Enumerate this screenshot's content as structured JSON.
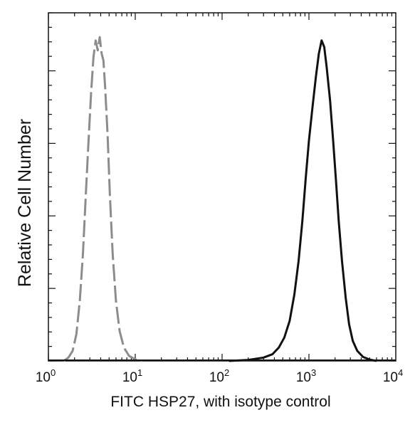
{
  "chart_data": {
    "type": "line",
    "title": "",
    "xlabel": "FITC  HSP27,  with isotype control",
    "ylabel": "Relative Cell Number",
    "x_scale": "log",
    "xlim": [
      1,
      10000
    ],
    "ylim": [
      0,
      100
    ],
    "x_ticks": [
      {
        "base": "10",
        "exp": "0",
        "value": 1
      },
      {
        "base": "10",
        "exp": "1",
        "value": 10
      },
      {
        "base": "10",
        "exp": "2",
        "value": 100
      },
      {
        "base": "10",
        "exp": "3",
        "value": 1000
      },
      {
        "base": "10",
        "exp": "4",
        "value": 10000
      }
    ],
    "grid": false,
    "legend": "none",
    "series": [
      {
        "style": "dashed",
        "color": "#8c8c8c",
        "points": [
          [
            1.5,
            0
          ],
          [
            1.7,
            1
          ],
          [
            1.9,
            3
          ],
          [
            2.1,
            8
          ],
          [
            2.3,
            18
          ],
          [
            2.5,
            32
          ],
          [
            2.7,
            50
          ],
          [
            2.9,
            66
          ],
          [
            3.1,
            80
          ],
          [
            3.3,
            91
          ],
          [
            3.5,
            96
          ],
          [
            3.7,
            93
          ],
          [
            3.9,
            97
          ],
          [
            4.1,
            92
          ],
          [
            4.3,
            90
          ],
          [
            4.5,
            82
          ],
          [
            4.8,
            68
          ],
          [
            5.1,
            50
          ],
          [
            5.5,
            32
          ],
          [
            6.0,
            18
          ],
          [
            6.6,
            9
          ],
          [
            7.4,
            4
          ],
          [
            8.5,
            1.5
          ],
          [
            10,
            0.5
          ],
          [
            12,
            0
          ]
        ]
      },
      {
        "style": "solid",
        "color": "#111111",
        "points": [
          [
            120,
            0
          ],
          [
            200,
            0.3
          ],
          [
            300,
            1
          ],
          [
            380,
            2
          ],
          [
            450,
            4
          ],
          [
            520,
            7
          ],
          [
            600,
            12
          ],
          [
            680,
            20
          ],
          [
            760,
            30
          ],
          [
            840,
            42
          ],
          [
            920,
            55
          ],
          [
            1000,
            66
          ],
          [
            1100,
            76
          ],
          [
            1200,
            85
          ],
          [
            1300,
            92
          ],
          [
            1400,
            96
          ],
          [
            1500,
            94
          ],
          [
            1600,
            88
          ],
          [
            1750,
            78
          ],
          [
            1900,
            66
          ],
          [
            2050,
            54
          ],
          [
            2200,
            42
          ],
          [
            2400,
            30
          ],
          [
            2650,
            19
          ],
          [
            2900,
            11
          ],
          [
            3200,
            6
          ],
          [
            3600,
            3
          ],
          [
            4200,
            1.2
          ],
          [
            5000,
            0.4
          ],
          [
            6000,
            0
          ]
        ]
      }
    ]
  }
}
